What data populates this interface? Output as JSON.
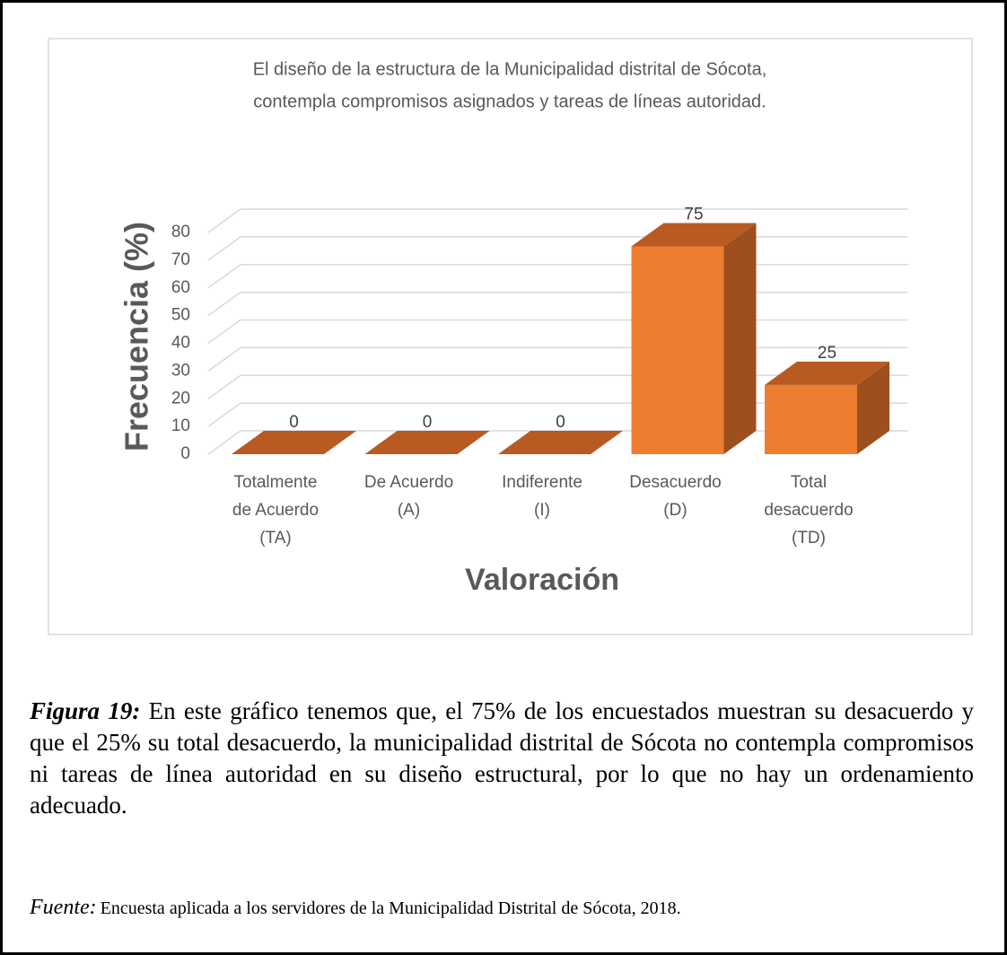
{
  "chart_data": {
    "type": "bar",
    "title": [
      "El diseño de la estructura de la Municipalidad distrital de Sócota,",
      "contempla compromisos asignados y   tareas de líneas autoridad."
    ],
    "categories": [
      "Totalmente\nde Acuerdo\n(TA)",
      "De Acuerdo\n(A)",
      "Indiferente\n(I)",
      "Desacuerdo\n(D)",
      "Total\ndesacuerdo\n(TD)"
    ],
    "values": [
      0,
      0,
      0,
      75,
      25
    ],
    "color": "#ed7d31",
    "ylim": [
      0,
      80
    ],
    "yticks": [
      0,
      10,
      20,
      30,
      40,
      50,
      60,
      70,
      80
    ],
    "grid": true,
    "y_label": "Frecuencia (%)",
    "x_label": "Valoración"
  },
  "caption": {
    "label": "Figura 19:",
    "text": "En este gráfico tenemos que, el 75% de los encuestados muestran su desacuerdo y que el 25% su total desacuerdo, la municipalidad distrital de Sócota no contempla compromisos ni tareas de línea autoridad en su diseño estructural, por lo que no hay un ordenamiento adecuado."
  },
  "source": {
    "label": "Fuente:",
    "text": "Encuesta aplicada a los servidores de la Municipalidad Distrital de Sócota, 2018."
  }
}
